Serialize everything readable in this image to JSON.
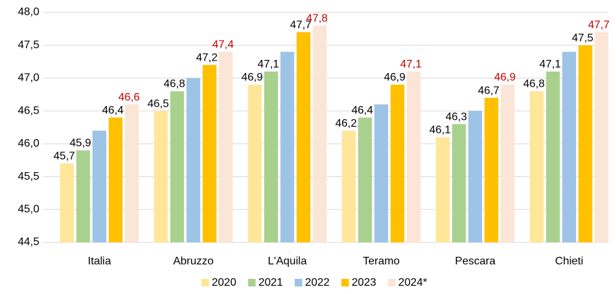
{
  "chart_data": {
    "type": "bar",
    "categories": [
      "Italia",
      "Abruzzo",
      "L'Aquila",
      "Teramo",
      "Pescara",
      "Chieti"
    ],
    "series": [
      {
        "name": "2020",
        "color": "#ffe699",
        "label_color": "#000000",
        "values": [
          45.7,
          46.5,
          46.9,
          46.2,
          46.1,
          46.8
        ],
        "value_labels": [
          "45,7",
          "46,5",
          "46,9",
          "46,2",
          "46,1",
          "46,8"
        ]
      },
      {
        "name": "2021",
        "color": "#a9d18e",
        "label_color": "#000000",
        "values": [
          45.9,
          46.8,
          47.1,
          46.4,
          46.3,
          47.1
        ],
        "value_labels": [
          "45,9",
          "46,8",
          "47,1",
          "46,4",
          "46,3",
          "47,1"
        ]
      },
      {
        "name": "2022",
        "color": "#9dc3e6",
        "values": [
          46.2,
          47.0,
          47.4,
          46.6,
          46.5,
          47.4
        ]
      },
      {
        "name": "2023",
        "color": "#ffc000",
        "label_color": "#000000",
        "values": [
          46.4,
          47.2,
          47.7,
          46.9,
          46.7,
          47.5
        ],
        "value_labels": [
          "46,4",
          "47,2",
          "47,7",
          "46,9",
          "46,7",
          "47,5"
        ]
      },
      {
        "name": "2024*",
        "color": "#fbe5d6",
        "label_color": "#c00000",
        "values": [
          46.6,
          47.4,
          47.8,
          47.1,
          46.9,
          47.7
        ],
        "value_labels": [
          "46,6",
          "47,4",
          "47,8",
          "47,1",
          "46,9",
          "47,7"
        ]
      }
    ],
    "ylim": [
      44.5,
      48.0
    ],
    "yticks": [
      {
        "value": 44.5,
        "label": "44,5"
      },
      {
        "value": 45.0,
        "label": "45,0"
      },
      {
        "value": 45.5,
        "label": "45,5"
      },
      {
        "value": 46.0,
        "label": "46,0"
      },
      {
        "value": 46.5,
        "label": "46,5"
      },
      {
        "value": 47.0,
        "label": "47,0"
      },
      {
        "value": 47.5,
        "label": "47,5"
      },
      {
        "value": 48.0,
        "label": "48,0"
      }
    ],
    "grid": true,
    "legend": "bottom"
  }
}
